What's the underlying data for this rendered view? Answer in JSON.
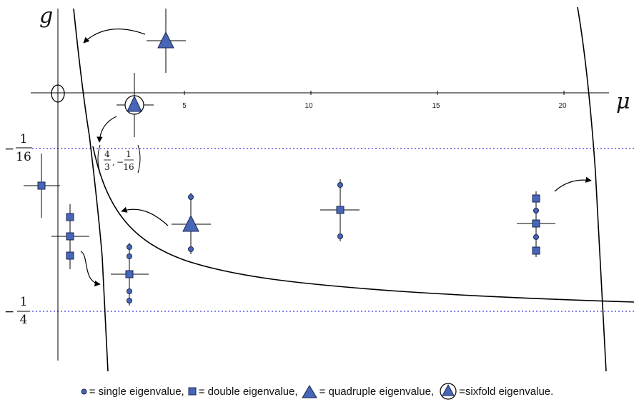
{
  "axes": {
    "x_name": "μ",
    "y_name": "g",
    "x_ticks": [
      "5",
      "10",
      "15",
      "20"
    ]
  },
  "ref_lines": [
    {
      "value": "-1/16",
      "num": "1",
      "den": "16",
      "sign": "−"
    },
    {
      "value": "-1/4",
      "num": "1",
      "den": "4",
      "sign": "−"
    }
  ],
  "point_label": {
    "x_num": "4",
    "x_den": "3",
    "y_sign": "−",
    "y_num": "1",
    "y_den": "16"
  },
  "legend": {
    "single": "= single eigenvalue,",
    "double": "= double eigenvalue,",
    "quadruple": "= quadruple eigenvalue,",
    "sixfold": "=sixfold eigenvalue."
  },
  "colors": {
    "marker_fill": "#4766b8",
    "marker_stroke": "#1a2550",
    "dashed_line": "#5a5ae0"
  },
  "icons": {
    "single": "small-circle",
    "double": "small-square",
    "quadruple": "triangle",
    "sixfold": "circled-triangle"
  }
}
